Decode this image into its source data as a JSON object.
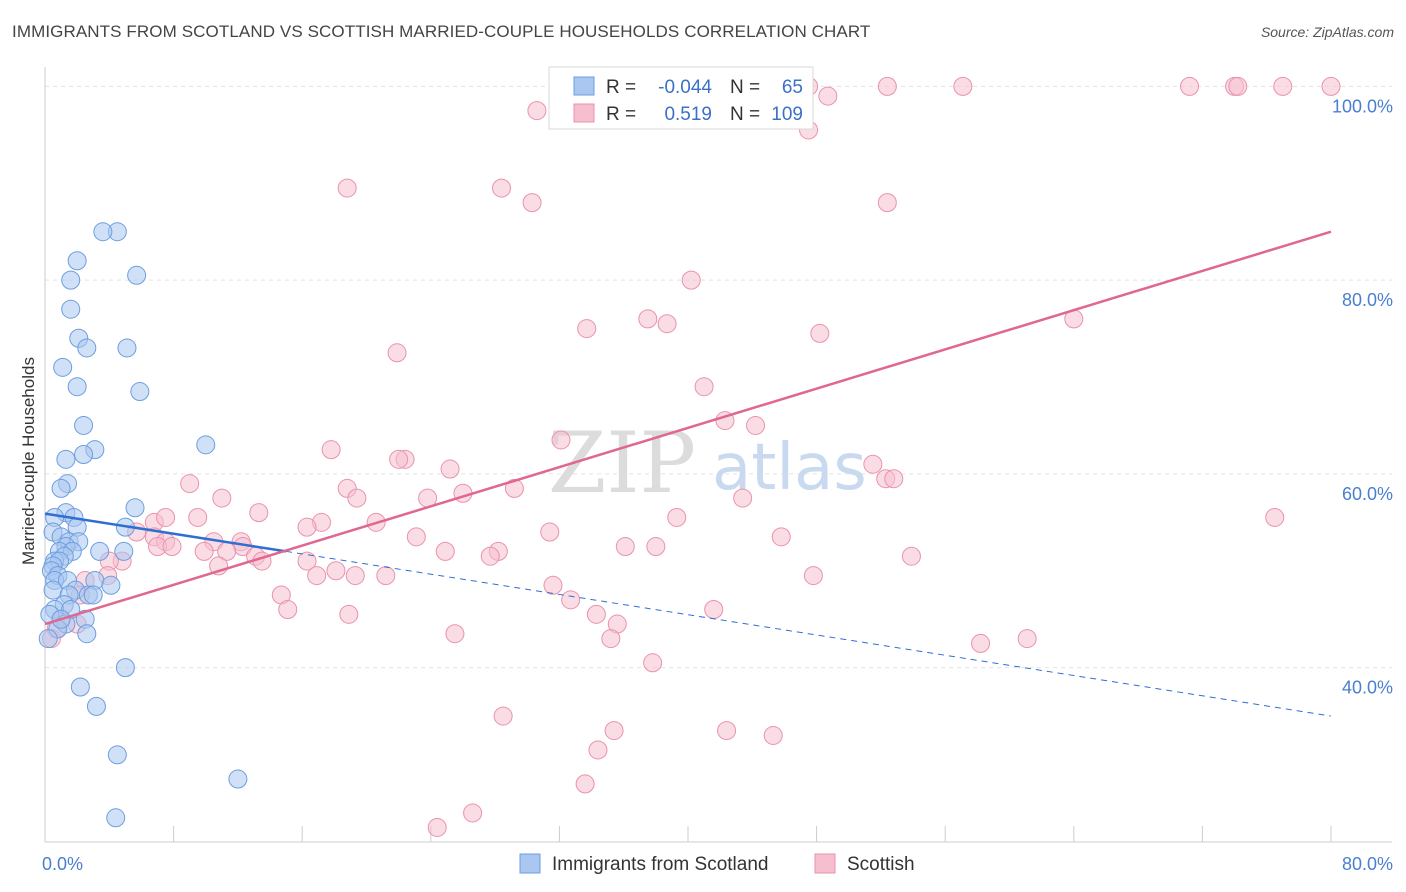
{
  "header": {
    "title": "IMMIGRANTS FROM SCOTLAND VS SCOTTISH MARRIED-COUPLE HOUSEHOLDS CORRELATION CHART",
    "source": "Source: ZipAtlas.com"
  },
  "watermark": {
    "zip": "ZIP",
    "atlas": "atlas"
  },
  "colors": {
    "blue_fill": "#a9c7f0",
    "blue_stroke": "#6d9ee0",
    "blue_line": "#2f6fd1",
    "pink_fill": "#f6bfcf",
    "pink_stroke": "#ea92ae",
    "pink_line": "#e0678f",
    "grid": "#e4e4e4",
    "axis": "#cccccc",
    "tick_text": "#4a7fd0"
  },
  "legend": {
    "rows": [
      {
        "r_label": "R =",
        "r_value": "-0.044",
        "n_label": "N =",
        "n_value": "65"
      },
      {
        "r_label": "R =",
        "r_value": "0.519",
        "n_label": "N =",
        "n_value": "109"
      }
    ]
  },
  "chart_data": {
    "type": "scatter",
    "title": "IMMIGRANTS FROM SCOTLAND VS SCOTTISH MARRIED-COUPLE HOUSEHOLDS CORRELATION CHART",
    "xlabel": "",
    "ylabel": "Married-couple Households",
    "xlim": [
      0,
      80
    ],
    "ylim": [
      22,
      102
    ],
    "x_tick_labels": [
      "0.0%",
      "80.0%"
    ],
    "y_ticks": [
      40,
      60,
      80,
      100
    ],
    "y_tick_labels": [
      "40.0%",
      "60.0%",
      "80.0%",
      "100.0%"
    ],
    "series": [
      {
        "name": "Immigrants from Scotland",
        "color": "#a9c7f0",
        "R": -0.044,
        "N": 65,
        "trend": {
          "x0": 0,
          "y0": 55.9,
          "x1": 15,
          "y1": 52.0,
          "dash_x1": 80,
          "dash_y1": 35.0
        },
        "points": [
          [
            4.5,
            85
          ],
          [
            3.6,
            85
          ],
          [
            2.0,
            82
          ],
          [
            5.7,
            80.5
          ],
          [
            1.6,
            80
          ],
          [
            1.6,
            77
          ],
          [
            2.1,
            74
          ],
          [
            2.6,
            73
          ],
          [
            5.1,
            73
          ],
          [
            1.1,
            71
          ],
          [
            2.0,
            69
          ],
          [
            5.9,
            68.5
          ],
          [
            2.4,
            65
          ],
          [
            10.0,
            63
          ],
          [
            3.1,
            62.5
          ],
          [
            2.4,
            62
          ],
          [
            1.3,
            61.5
          ],
          [
            1.4,
            59
          ],
          [
            1.0,
            58.5
          ],
          [
            5.6,
            56.5
          ],
          [
            1.3,
            56
          ],
          [
            0.6,
            55.5
          ],
          [
            1.8,
            55.5
          ],
          [
            2.0,
            54.5
          ],
          [
            5.0,
            54.5
          ],
          [
            0.5,
            54
          ],
          [
            1.0,
            53.5
          ],
          [
            1.5,
            53
          ],
          [
            2.1,
            53
          ],
          [
            1.3,
            52.5
          ],
          [
            0.9,
            52
          ],
          [
            1.7,
            52
          ],
          [
            3.4,
            52
          ],
          [
            4.9,
            52
          ],
          [
            1.2,
            51.5
          ],
          [
            0.6,
            51
          ],
          [
            0.9,
            51
          ],
          [
            0.5,
            50.5
          ],
          [
            0.4,
            50
          ],
          [
            0.8,
            49.5
          ],
          [
            0.6,
            49
          ],
          [
            1.4,
            49
          ],
          [
            3.1,
            49
          ],
          [
            4.1,
            48.5
          ],
          [
            0.5,
            48
          ],
          [
            1.9,
            48
          ],
          [
            2.7,
            47.5
          ],
          [
            3.0,
            47.5
          ],
          [
            1.5,
            47.5
          ],
          [
            1.2,
            46.5
          ],
          [
            0.6,
            46
          ],
          [
            1.6,
            46
          ],
          [
            0.3,
            45.5
          ],
          [
            2.5,
            45
          ],
          [
            1.3,
            44.5
          ],
          [
            0.8,
            44
          ],
          [
            2.6,
            43.5
          ],
          [
            5.0,
            40
          ],
          [
            2.2,
            38
          ],
          [
            3.2,
            36
          ],
          [
            4.5,
            31
          ],
          [
            12.0,
            28.5
          ],
          [
            4.4,
            24.5
          ],
          [
            0.2,
            43
          ],
          [
            1.0,
            45
          ]
        ]
      },
      {
        "name": "Scottish",
        "color": "#f6bfcf",
        "R": 0.519,
        "N": 109,
        "trend": {
          "x0": 0,
          "y0": 44.5,
          "x1": 80,
          "y1": 85.0
        },
        "points": [
          [
            44.5,
            100
          ],
          [
            47.5,
            100
          ],
          [
            52.4,
            100
          ],
          [
            57.1,
            100
          ],
          [
            71.2,
            100
          ],
          [
            74.0,
            100
          ],
          [
            77.0,
            100
          ],
          [
            80.0,
            100
          ],
          [
            74.2,
            100
          ],
          [
            48.7,
            99
          ],
          [
            30.6,
            97.5
          ],
          [
            47.5,
            95.5
          ],
          [
            28.4,
            89.5
          ],
          [
            30.3,
            88
          ],
          [
            52.4,
            88
          ],
          [
            40.2,
            80
          ],
          [
            64.0,
            76
          ],
          [
            37.5,
            76
          ],
          [
            38.7,
            75.5
          ],
          [
            33.7,
            75
          ],
          [
            48.2,
            74.5
          ],
          [
            21.9,
            72.5
          ],
          [
            41.0,
            69
          ],
          [
            42.3,
            65.5
          ],
          [
            44.2,
            65
          ],
          [
            32.1,
            63.5
          ],
          [
            17.8,
            62.5
          ],
          [
            22.4,
            61.5
          ],
          [
            22.0,
            61.5
          ],
          [
            25.2,
            60.5
          ],
          [
            51.5,
            61
          ],
          [
            52.3,
            59.5
          ],
          [
            9.0,
            59
          ],
          [
            18.8,
            58.5
          ],
          [
            29.2,
            58.5
          ],
          [
            26.0,
            58
          ],
          [
            11.0,
            57.5
          ],
          [
            19.4,
            57.5
          ],
          [
            23.8,
            57.5
          ],
          [
            43.4,
            57.5
          ],
          [
            13.3,
            56
          ],
          [
            39.3,
            55.5
          ],
          [
            9.5,
            55.5
          ],
          [
            6.8,
            55
          ],
          [
            17.2,
            55
          ],
          [
            20.6,
            55
          ],
          [
            7.5,
            55.5
          ],
          [
            16.3,
            54.5
          ],
          [
            5.7,
            54
          ],
          [
            31.4,
            54
          ],
          [
            6.8,
            53.5
          ],
          [
            7.5,
            53
          ],
          [
            10.5,
            53
          ],
          [
            23.1,
            53.5
          ],
          [
            36.1,
            52.5
          ],
          [
            45.8,
            53.5
          ],
          [
            12.2,
            53
          ],
          [
            12.3,
            52.5
          ],
          [
            7.0,
            52.5
          ],
          [
            7.9,
            52.5
          ],
          [
            11.3,
            52
          ],
          [
            9.9,
            52
          ],
          [
            13.1,
            51.5
          ],
          [
            24.9,
            52
          ],
          [
            28.2,
            52
          ],
          [
            27.7,
            51.5
          ],
          [
            38.0,
            52.5
          ],
          [
            53.9,
            51.5
          ],
          [
            13.5,
            51
          ],
          [
            16.3,
            51
          ],
          [
            4.8,
            51
          ],
          [
            4.0,
            51
          ],
          [
            10.8,
            50.5
          ],
          [
            18.1,
            50
          ],
          [
            16.9,
            49.5
          ],
          [
            19.3,
            49.5
          ],
          [
            3.9,
            49.5
          ],
          [
            2.5,
            49
          ],
          [
            21.2,
            49.5
          ],
          [
            47.8,
            49.5
          ],
          [
            31.6,
            48.5
          ],
          [
            2.2,
            47.5
          ],
          [
            14.7,
            47.5
          ],
          [
            32.7,
            47
          ],
          [
            15.1,
            46
          ],
          [
            18.9,
            45.5
          ],
          [
            34.3,
            45.5
          ],
          [
            41.6,
            46
          ],
          [
            35.6,
            44.5
          ],
          [
            2.0,
            44.5
          ],
          [
            1.0,
            45
          ],
          [
            0.7,
            44
          ],
          [
            25.5,
            43.5
          ],
          [
            35.2,
            43
          ],
          [
            58.2,
            42.5
          ],
          [
            61.1,
            43
          ],
          [
            37.8,
            40.5
          ],
          [
            28.5,
            35
          ],
          [
            35.4,
            33.5
          ],
          [
            42.4,
            33.5
          ],
          [
            45.3,
            33
          ],
          [
            34.4,
            31.5
          ],
          [
            33.6,
            28
          ],
          [
            26.6,
            25
          ],
          [
            24.4,
            23.5
          ],
          [
            76.5,
            55.5
          ],
          [
            52.8,
            59.5
          ],
          [
            0.4,
            43
          ],
          [
            18.8,
            89.5
          ]
        ]
      }
    ]
  }
}
